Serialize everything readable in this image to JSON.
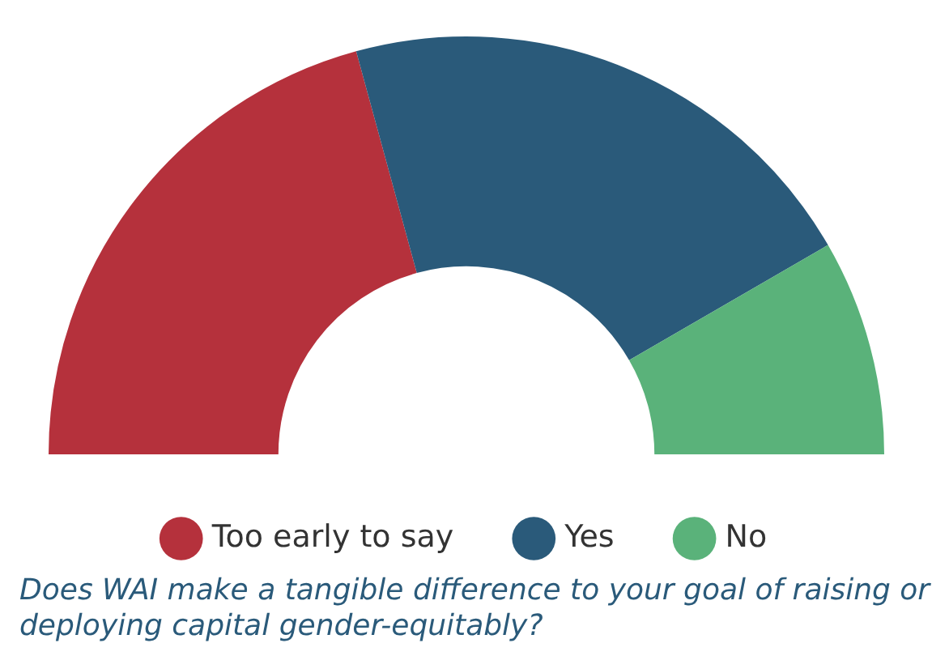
{
  "chart_data": {
    "type": "donut",
    "title": "Does WAI make a tangible difference to your goal of raising or deploying capital gender-equitably?",
    "categories": [
      "Too early to say",
      "Yes",
      "No"
    ],
    "values": [
      41.5,
      41.8,
      16.7
    ],
    "colors": [
      "#b5313c",
      "#2a5a7a",
      "#5ab27a"
    ],
    "legend": "bottom"
  }
}
